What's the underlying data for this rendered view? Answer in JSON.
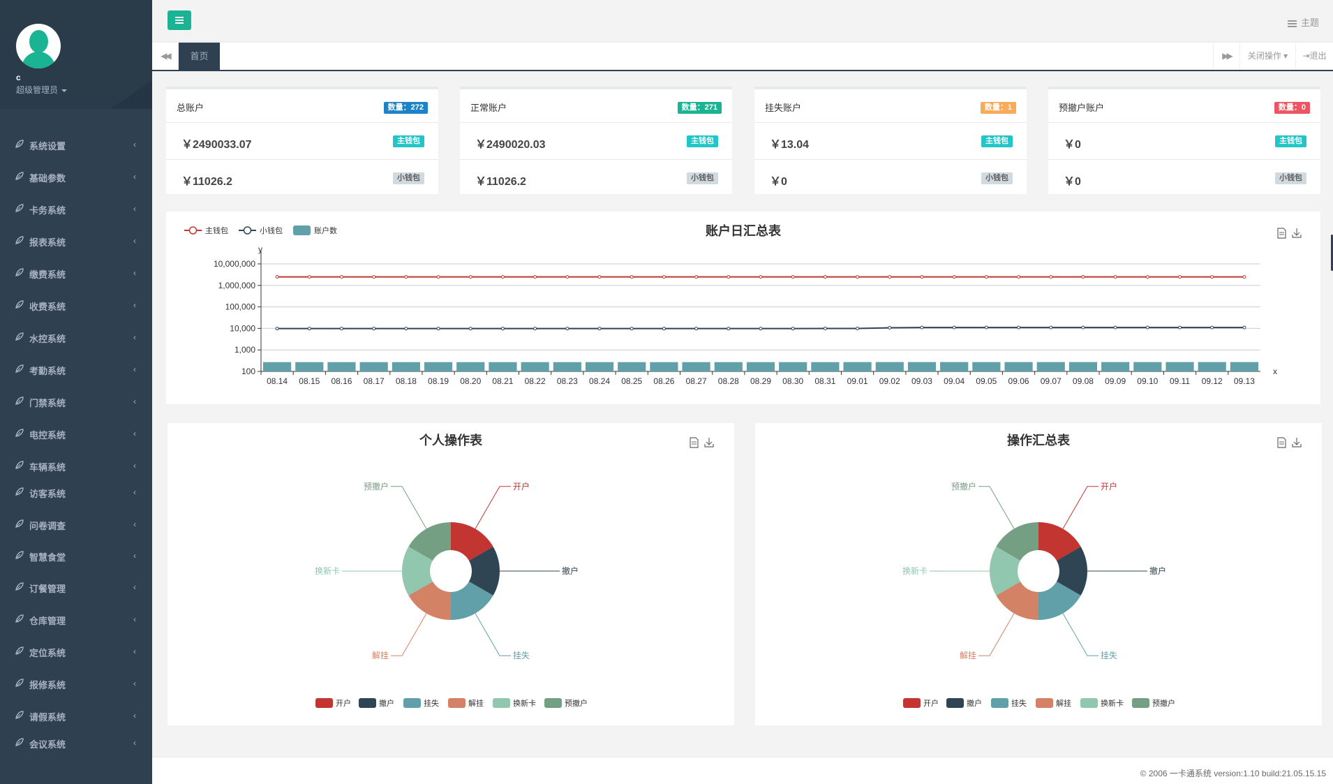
{
  "user": {
    "name": "c",
    "role": "超级管理员"
  },
  "sidebar": {
    "items": [
      {
        "label": "系统设置"
      },
      {
        "label": "基础参数"
      },
      {
        "label": "卡务系统"
      },
      {
        "label": "报表系统"
      },
      {
        "label": "缴费系统"
      },
      {
        "label": "收费系统"
      },
      {
        "label": "水控系统"
      },
      {
        "label": "考勤系统"
      },
      {
        "label": "门禁系统"
      },
      {
        "label": "电控系统"
      },
      {
        "label": "车辆系统"
      },
      {
        "label": "访客系统"
      },
      {
        "label": "问卷调查"
      },
      {
        "label": "智慧食堂"
      },
      {
        "label": "订餐管理"
      },
      {
        "label": "仓库管理"
      },
      {
        "label": "定位系统"
      },
      {
        "label": "报修系统"
      },
      {
        "label": "请假系统"
      },
      {
        "label": "会议系统"
      }
    ]
  },
  "header": {
    "theme_label": "主题"
  },
  "tabs": {
    "home": "首页",
    "close_ops": "关闭操作",
    "logout": "退出"
  },
  "cards": [
    {
      "title": "总账户",
      "count_badge": "数量：272",
      "count_color": "#1c84c6",
      "main_amount": "￥2490033.07",
      "main_badge": "主钱包",
      "small_amount": "￥11026.2",
      "small_badge": "小钱包"
    },
    {
      "title": "正常账户",
      "count_badge": "数量：271",
      "count_color": "#1ab394",
      "main_amount": "￥2490020.03",
      "main_badge": "主钱包",
      "small_amount": "￥11026.2",
      "small_badge": "小钱包"
    },
    {
      "title": "挂失账户",
      "count_badge": "数量：1",
      "count_color": "#f8ac59",
      "main_amount": "￥13.04",
      "main_badge": "主钱包",
      "small_amount": "￥0",
      "small_badge": "小钱包"
    },
    {
      "title": "预撤户账户",
      "count_badge": "数量：0",
      "count_color": "#ed5565",
      "main_amount": "￥0",
      "main_badge": "主钱包",
      "small_amount": "￥0",
      "small_badge": "小钱包"
    }
  ],
  "chart_data": [
    {
      "type": "line",
      "title": "账户日汇总表",
      "xlabel": "x",
      "ylabel": "y",
      "yscale": "log",
      "ylim": [
        100,
        10000000
      ],
      "y_ticks": [
        "10,000,000",
        "1,000,000",
        "100,000",
        "10,000",
        "1,000",
        "100"
      ],
      "legend_position": "top-left",
      "categories": [
        "08.14",
        "08.15",
        "08.16",
        "08.17",
        "08.18",
        "08.19",
        "08.20",
        "08.21",
        "08.22",
        "08.23",
        "08.24",
        "08.25",
        "08.26",
        "08.27",
        "08.28",
        "08.29",
        "08.30",
        "08.31",
        "09.01",
        "09.02",
        "09.03",
        "09.04",
        "09.05",
        "09.06",
        "09.07",
        "09.08",
        "09.09",
        "09.10",
        "09.11",
        "09.12",
        "09.13"
      ],
      "series": [
        {
          "name": "主钱包",
          "type": "line",
          "color": "#c23531",
          "values": [
            2490000,
            2490000,
            2490000,
            2490000,
            2490000,
            2490000,
            2490000,
            2490000,
            2490000,
            2490000,
            2490000,
            2490000,
            2490000,
            2490000,
            2490000,
            2490000,
            2490000,
            2490000,
            2490000,
            2490000,
            2490000,
            2490000,
            2490000,
            2490000,
            2490000,
            2490000,
            2490000,
            2490000,
            2490000,
            2490000,
            2490033
          ]
        },
        {
          "name": "小钱包",
          "type": "line",
          "color": "#2f4554",
          "values": [
            9800,
            9800,
            9800,
            9800,
            9800,
            9800,
            9800,
            9800,
            9800,
            9800,
            9800,
            9800,
            9800,
            9800,
            9800,
            9800,
            9800,
            9900,
            9900,
            10700,
            11000,
            11000,
            11000,
            11000,
            11000,
            11000,
            11000,
            11000,
            11000,
            11000,
            11026
          ]
        },
        {
          "name": "账户数",
          "type": "bar",
          "color": "#61a0a8",
          "values": [
            270,
            270,
            270,
            270,
            270,
            270,
            270,
            270,
            270,
            270,
            270,
            270,
            270,
            270,
            270,
            270,
            270,
            270,
            272,
            272,
            272,
            272,
            272,
            272,
            272,
            272,
            272,
            272,
            272,
            272,
            272
          ]
        }
      ]
    },
    {
      "type": "pie",
      "title": "个人操作表",
      "legend_position": "bottom",
      "labels": [
        "开户",
        "撤户",
        "挂失",
        "解挂",
        "换新卡",
        "预撤户"
      ],
      "colors": [
        "#c23531",
        "#2f4554",
        "#61a0a8",
        "#d48265",
        "#91c7ae",
        "#749f83"
      ],
      "values": [
        1,
        1,
        1,
        1,
        1,
        1
      ]
    },
    {
      "type": "pie",
      "title": "操作汇总表",
      "legend_position": "bottom",
      "labels": [
        "开户",
        "撤户",
        "挂失",
        "解挂",
        "换新卡",
        "预撤户"
      ],
      "colors": [
        "#c23531",
        "#2f4554",
        "#61a0a8",
        "#d48265",
        "#91c7ae",
        "#749f83"
      ],
      "values": [
        1,
        1,
        1,
        1,
        1,
        1
      ]
    }
  ],
  "footer": {
    "text": "© 2006 一卡通系统 version:1.10 build:21.05.15.15"
  }
}
